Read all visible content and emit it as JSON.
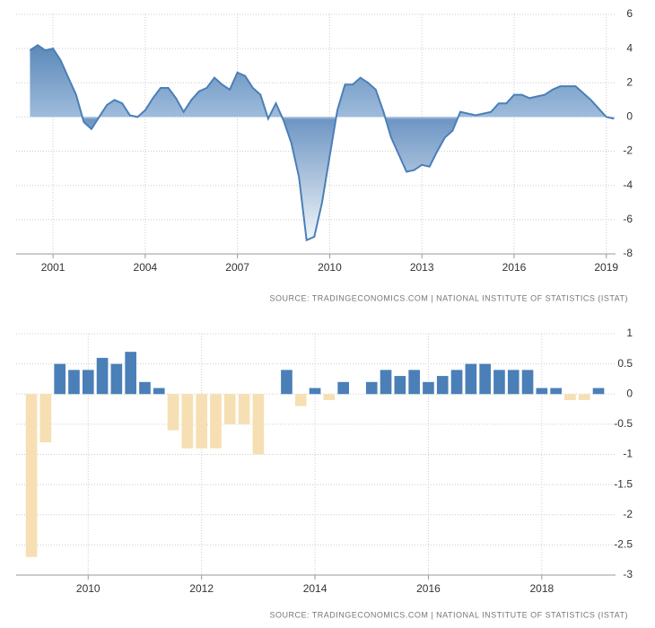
{
  "chart_data": [
    {
      "type": "area",
      "source": "SOURCE: TRADINGECONOMICS.COM | NATIONAL INSTITUTE OF STATISTICS (ISTAT)",
      "x": [
        2000.25,
        2000.5,
        2000.75,
        2001,
        2001.25,
        2001.5,
        2001.75,
        2002,
        2002.25,
        2002.5,
        2002.75,
        2003,
        2003.25,
        2003.5,
        2003.75,
        2004,
        2004.25,
        2004.5,
        2004.75,
        2005,
        2005.25,
        2005.5,
        2005.75,
        2006,
        2006.25,
        2006.5,
        2006.75,
        2007,
        2007.25,
        2007.5,
        2007.75,
        2008,
        2008.25,
        2008.5,
        2008.75,
        2009,
        2009.25,
        2009.5,
        2009.75,
        2010,
        2010.25,
        2010.5,
        2010.75,
        2011,
        2011.25,
        2011.5,
        2011.75,
        2012,
        2012.25,
        2012.5,
        2012.75,
        2013,
        2013.25,
        2013.5,
        2013.75,
        2014,
        2014.25,
        2014.5,
        2014.75,
        2015,
        2015.25,
        2015.5,
        2015.75,
        2016,
        2016.25,
        2016.5,
        2016.75,
        2017,
        2017.25,
        2017.5,
        2017.75,
        2018,
        2018.25,
        2018.5,
        2018.75,
        2019,
        2019.25
      ],
      "values": [
        3.9,
        4.2,
        3.9,
        4.0,
        3.3,
        2.3,
        1.3,
        -0.3,
        -0.7,
        0.0,
        0.7,
        1.0,
        0.8,
        0.1,
        0.0,
        0.4,
        1.1,
        1.7,
        1.7,
        1.1,
        0.3,
        1.0,
        1.5,
        1.7,
        2.3,
        1.9,
        1.6,
        2.6,
        2.4,
        1.7,
        1.3,
        -0.1,
        0.8,
        -0.2,
        -1.5,
        -3.5,
        -7.2,
        -7.0,
        -5.0,
        -2.3,
        0.4,
        1.9,
        1.9,
        2.3,
        2.0,
        1.6,
        0.3,
        -1.2,
        -2.2,
        -3.2,
        -3.1,
        -2.8,
        -2.9,
        -2.0,
        -1.2,
        -0.8,
        0.3,
        0.2,
        0.1,
        0.2,
        0.3,
        0.8,
        0.8,
        1.3,
        1.3,
        1.1,
        1.2,
        1.3,
        1.6,
        1.8,
        1.8,
        1.8,
        1.4,
        1.0,
        0.5,
        0.0,
        -0.1
      ],
      "color": "#4a7fb8",
      "xlim": [
        1999.8,
        2019.3
      ],
      "xticks": [
        2001,
        2004,
        2007,
        2010,
        2013,
        2016,
        2019
      ],
      "ylim": [
        -8,
        6
      ],
      "yticks": [
        6,
        4,
        2,
        0,
        -2,
        -4,
        -6,
        -8
      ],
      "grid": true
    },
    {
      "type": "bar",
      "source": "SOURCE: TRADINGECONOMICS.COM | NATIONAL INSTITUTE OF STATISTICS (ISTAT)",
      "x": [
        2009,
        2009.25,
        2009.5,
        2009.75,
        2010,
        2010.25,
        2010.5,
        2010.75,
        2011,
        2011.25,
        2011.5,
        2011.75,
        2012,
        2012.25,
        2012.5,
        2012.75,
        2013,
        2013.25,
        2013.5,
        2013.75,
        2014,
        2014.25,
        2014.5,
        2014.75,
        2015,
        2015.25,
        2015.5,
        2015.75,
        2016,
        2016.25,
        2016.5,
        2016.75,
        2017,
        2017.25,
        2017.5,
        2017.75,
        2018,
        2018.25,
        2018.5,
        2018.75,
        2019
      ],
      "values": [
        -2.7,
        -0.8,
        0.5,
        0.4,
        0.4,
        0.6,
        0.5,
        0.7,
        0.2,
        0.1,
        -0.6,
        -0.9,
        -0.9,
        -0.9,
        -0.5,
        -0.5,
        -1.0,
        0,
        0.4,
        -0.2,
        0.1,
        -0.1,
        0.2,
        0,
        0.2,
        0.4,
        0.3,
        0.4,
        0.2,
        0.3,
        0.4,
        0.5,
        0.5,
        0.4,
        0.4,
        0.4,
        0.1,
        0.1,
        -0.1,
        -0.1,
        0.1
      ],
      "color": "#4a7fb8",
      "negative_color": "#f6dfb2",
      "xlim": [
        2008.73,
        2019.3
      ],
      "xticks": [
        2010,
        2012,
        2014,
        2016,
        2018
      ],
      "ylim": [
        -3,
        1
      ],
      "yticks": [
        1,
        0.5,
        0,
        -0.5,
        -1,
        -1.5,
        -2,
        -2.5,
        -3
      ],
      "grid": true
    }
  ]
}
